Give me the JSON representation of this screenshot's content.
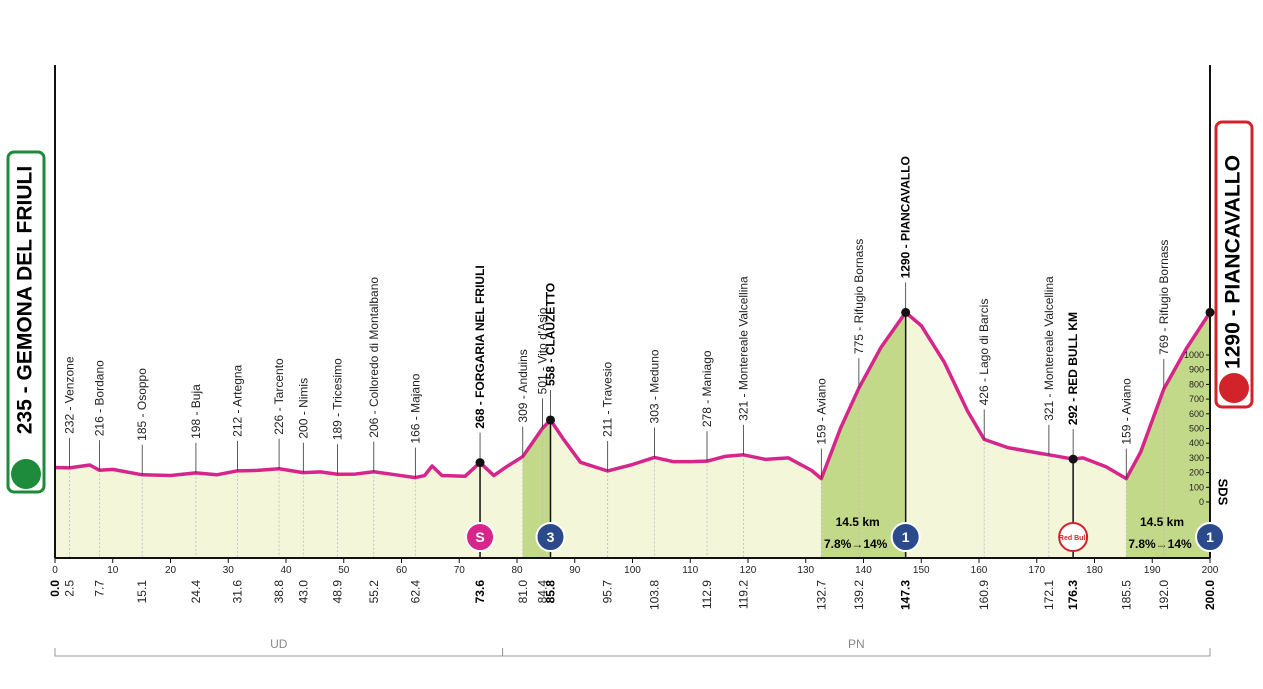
{
  "chart_data": {
    "type": "area",
    "start_label": "235 - GEMONA DEL FRIULI",
    "finish_label": "1290 - PIANCAVALLO",
    "side_label": "SDS",
    "line_color": "#d6268c",
    "fill_color": "#f3f6d9",
    "climb_color": "#c3d98a",
    "x": [
      0,
      2.5,
      6,
      7.7,
      10,
      15.1,
      20,
      24.4,
      28,
      31.6,
      35,
      38.8,
      43,
      46,
      48.9,
      52,
      55.2,
      59,
      62.4,
      64,
      65.3,
      67,
      71,
      73.6,
      76,
      78,
      81,
      84.4,
      85.8,
      88,
      91,
      95.7,
      100,
      103.8,
      107,
      110,
      112.9,
      116,
      119.2,
      123,
      127,
      131,
      132.7,
      136,
      139.2,
      143,
      147.3,
      150,
      154,
      158,
      160.9,
      165,
      170,
      172.1,
      176.3,
      178,
      182,
      185.5,
      188,
      192,
      196,
      200
    ],
    "values": [
      235,
      232,
      252,
      216,
      222,
      185,
      180,
      198,
      185,
      212,
      215,
      226,
      200,
      205,
      189,
      190,
      206,
      185,
      166,
      180,
      245,
      180,
      175,
      268,
      180,
      235,
      309,
      501,
      558,
      430,
      270,
      211,
      255,
      303,
      275,
      275,
      278,
      310,
      321,
      290,
      300,
      215,
      159,
      500,
      775,
      1050,
      1290,
      1200,
      950,
      620,
      426,
      370,
      335,
      321,
      292,
      300,
      240,
      159,
      340,
      769,
      1050,
      1290
    ],
    "xlim": [
      0,
      200
    ],
    "ylim": [
      -381,
      2973
    ],
    "xticks": [
      0,
      10,
      20,
      30,
      40,
      50,
      60,
      70,
      80,
      90,
      100,
      110,
      120,
      130,
      140,
      150,
      160,
      170,
      180,
      190,
      200
    ],
    "yticks": [
      0,
      100,
      200,
      300,
      400,
      500,
      600,
      700,
      800,
      900,
      1000
    ],
    "waypoints": [
      {
        "km": {
          "value": 0,
          "label": "0.0"
        },
        "bold": true
      },
      {
        "km": 2.5,
        "label": "232 - Venzone"
      },
      {
        "km": 7.7,
        "label": "216 - Bordano"
      },
      {
        "km": 15.1,
        "label": "185 - Osoppo"
      },
      {
        "km": 24.4,
        "label": "198 - Buja"
      },
      {
        "km": 31.6,
        "label": "212 - Artegna"
      },
      {
        "km": 38.8,
        "label": "226 - Tarcento"
      },
      {
        "km": {
          "value": 43,
          "label": "43.0"
        },
        "label": "200 - Nimis"
      },
      {
        "km": 48.9,
        "label": "189 - Tricesimo"
      },
      {
        "km": 55.2,
        "label": "206 - Colloredo di Montalbano"
      },
      {
        "km": 62.4,
        "label": "166 - Majano"
      },
      {
        "km": 73.6,
        "label": "268 - FORGARIA NEL FRIULI",
        "bold": true,
        "badge": "S",
        "badge_color": "#d6268c"
      },
      {
        "km": {
          "value": 81,
          "label": "81.0"
        },
        "label": "309 - Anduins"
      },
      {
        "km": 84.4,
        "label": "501 - Vito d'Asio"
      },
      {
        "km": 85.8,
        "label": "558 - CLAUZETTO",
        "bold": true,
        "badge": "3",
        "badge_color": "#2b4a8c"
      },
      {
        "km": 95.7,
        "label": "211 - Travesio"
      },
      {
        "km": 103.8,
        "label": "303 - Meduno"
      },
      {
        "km": 112.9,
        "label": "278 - Maniago"
      },
      {
        "km": 119.2,
        "label": "321 - Montereale Valcellina"
      },
      {
        "km": 132.7,
        "label": "159 - Aviano"
      },
      {
        "km": 139.2,
        "label": "775 - Rifugio Bornass"
      },
      {
        "km": 147.3,
        "label": "1290 - PIANCAVALLO",
        "bold": true,
        "badge": "1",
        "badge_color": "#2b4a8c"
      },
      {
        "km": 160.9,
        "label": "426 - Lago di Barcis"
      },
      {
        "km": 172.1,
        "label": "321 - Montereale Valcellina"
      },
      {
        "km": 176.3,
        "label": "292 - RED BULL KM",
        "bold": true,
        "badge": "Red Bull",
        "badge_color": "#ffffff"
      },
      {
        "km": 185.5,
        "label": "159 - Aviano"
      },
      {
        "km": {
          "value": 192,
          "label": "192.0"
        },
        "label": "769 - Rifugio Bornass"
      },
      {
        "km": {
          "value": 200,
          "label": "200.0"
        },
        "bold": true,
        "badge": "1",
        "badge_color": "#2b4a8c"
      }
    ],
    "climbs": [
      {
        "from": 81,
        "to": 85.8
      },
      {
        "from": 132.7,
        "to": 147.3,
        "length": "14.5 km",
        "gradient": "7.8%→14%"
      },
      {
        "from": 185.5,
        "to": 200,
        "length": "14.5 km",
        "gradient": "7.8%→14%"
      }
    ],
    "regions": [
      {
        "label": "UD",
        "from": 0,
        "to": 77.5
      },
      {
        "label": "PN",
        "from": 77.5,
        "to": 200
      }
    ]
  }
}
